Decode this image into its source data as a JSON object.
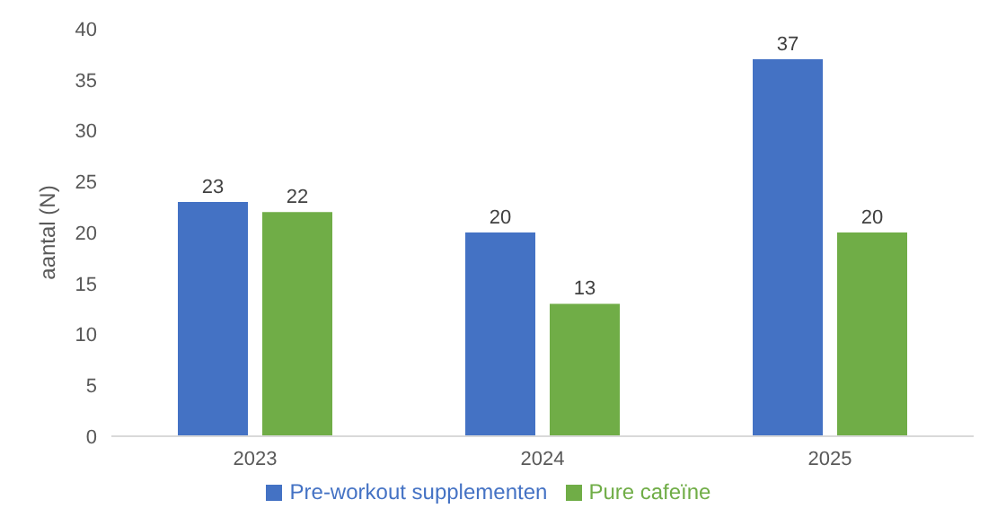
{
  "chart_data": {
    "type": "bar",
    "ylabel": "aantal (N)",
    "categories": [
      "2023",
      "2024",
      "2025"
    ],
    "series": [
      {
        "name": "Pre-workout supplementen",
        "color": "#4472c4",
        "values": [
          23,
          20,
          37
        ]
      },
      {
        "name": "Pure cafeïne",
        "color": "#70ad47",
        "values": [
          22,
          13,
          20
        ]
      }
    ],
    "ylim": [
      0,
      40
    ],
    "yticks": [
      0,
      5,
      10,
      15,
      20,
      25,
      30,
      35,
      40
    ],
    "data_labels": true,
    "legend": "bottom",
    "grid": false
  }
}
